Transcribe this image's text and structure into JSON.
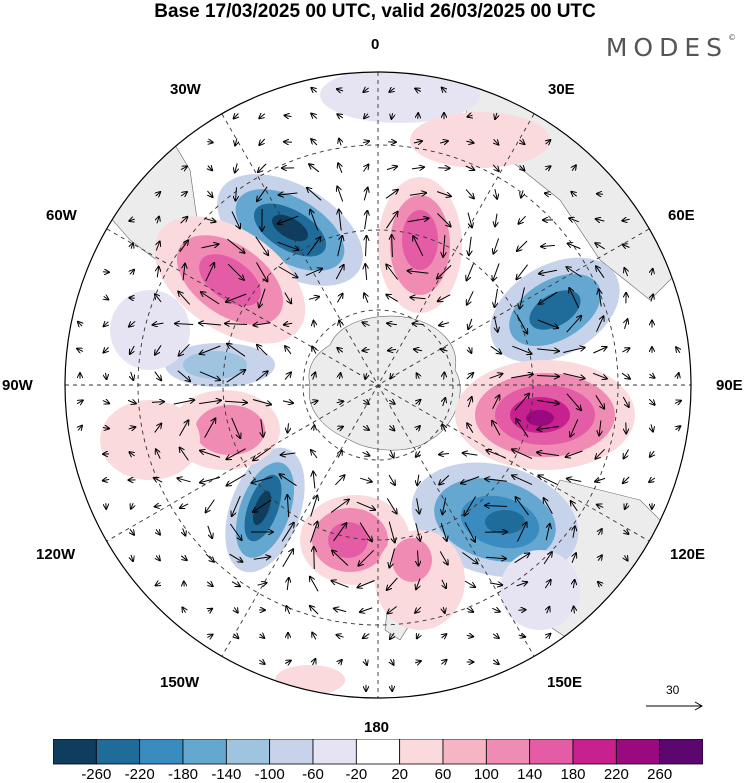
{
  "title": "Base 17/03/2025 00 UTC, valid 26/03/2025 00 UTC",
  "brand": "MODES",
  "brand_mark": "©",
  "map": {
    "projection": "south-polar-stereographic",
    "longitude_labels": {
      "top": "0",
      "bottom": "180",
      "left": "90W",
      "right": "90E",
      "upper_left_1": "30W",
      "upper_left_2": "60W",
      "upper_right_1": "30E",
      "upper_right_2": "60E",
      "lower_left_1": "120W",
      "lower_left_2": "150W",
      "lower_right_1": "120E",
      "lower_right_2": "150E"
    },
    "reference_vector": "30",
    "anomaly_centers": [
      {
        "sign": "negative",
        "lon_label": "30W-60W",
        "level": "-260"
      },
      {
        "sign": "positive",
        "lon_label": "10E",
        "level": "180"
      },
      {
        "sign": "positive",
        "lon_label": "60W",
        "level": "180"
      },
      {
        "sign": "negative",
        "lon_label": "60E",
        "level": "-220"
      },
      {
        "sign": "positive",
        "lon_label": "90E",
        "level": "260"
      },
      {
        "sign": "negative",
        "lon_label": "130E",
        "level": "-260"
      },
      {
        "sign": "positive",
        "lon_label": "170W",
        "level": "180"
      },
      {
        "sign": "negative",
        "lon_label": "140W",
        "level": "-260"
      },
      {
        "sign": "positive",
        "lon_label": "110W",
        "level": "140"
      },
      {
        "sign": "negative",
        "lon_label": "90W",
        "level": "-140"
      }
    ]
  },
  "colorbar": {
    "colors": [
      "#0f3d5e",
      "#1f6b9a",
      "#3a8cc0",
      "#64a8d2",
      "#9fc4e0",
      "#c7d3ea",
      "#e6e4f2",
      "#ffffff",
      "#fadadd",
      "#f6b4c4",
      "#f08cb3",
      "#e55ca6",
      "#c8208f",
      "#9a0a7e",
      "#5c0770"
    ],
    "ticks": [
      "-260",
      "-220",
      "-180",
      "-140",
      "-100",
      "-60",
      "-20",
      "20",
      "60",
      "100",
      "140",
      "180",
      "220",
      "260"
    ]
  }
}
